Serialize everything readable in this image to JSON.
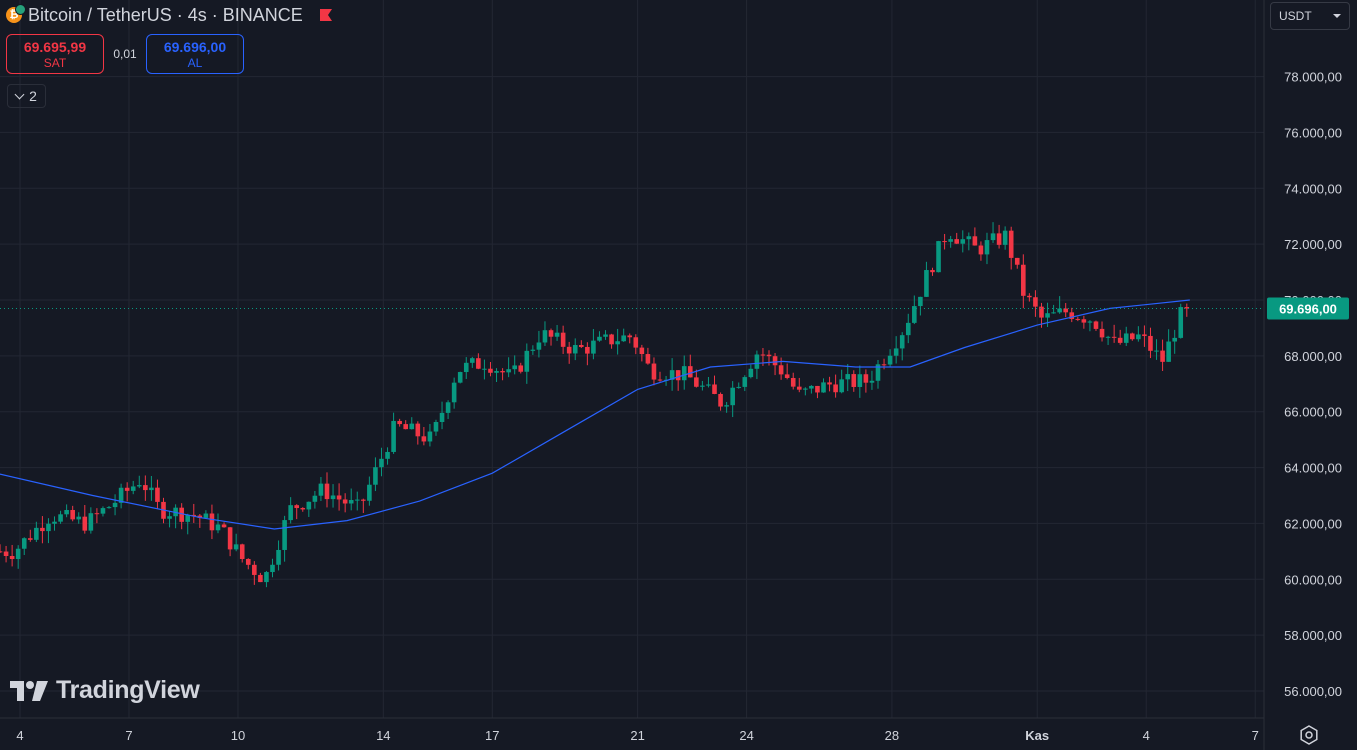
{
  "header": {
    "title": "Bitcoin / TetherUS · 4s · BINANCE",
    "coin_icon": "bitcoin-icon",
    "flag_icon": "flag-icon"
  },
  "trade": {
    "sell_price": "69.695,99",
    "sell_label": "SAT",
    "spread": "0,01",
    "buy_price": "69.696,00",
    "buy_label": "AL"
  },
  "indicators_toggle": {
    "count": "2"
  },
  "currency": {
    "value": "USDT"
  },
  "logo": {
    "text": "TradingView"
  },
  "colors": {
    "background": "#151924",
    "grid": "#232733",
    "up": "#089981",
    "down": "#f23645",
    "moving_average": "#2962ff",
    "text": "#d1d4dc"
  },
  "chart_data": {
    "type": "candlestick",
    "ylim": [
      55000,
      80000
    ],
    "y_ticks": [
      {
        "value": 78000,
        "label": "78.000,00"
      },
      {
        "value": 76000,
        "label": "76.000,00"
      },
      {
        "value": 74000,
        "label": "74.000,00"
      },
      {
        "value": 72000,
        "label": "72.000,00"
      },
      {
        "value": 70000,
        "label": "70.000,00"
      },
      {
        "value": 68000,
        "label": "68.000,00"
      },
      {
        "value": 66000,
        "label": "66.000,00"
      },
      {
        "value": 64000,
        "label": "64.000,00"
      },
      {
        "value": 62000,
        "label": "62.000,00"
      },
      {
        "value": 60000,
        "label": "60.000,00"
      },
      {
        "value": 58000,
        "label": "58.000,00"
      },
      {
        "value": 56000,
        "label": "56.000,00"
      }
    ],
    "x_ticks": [
      {
        "day": 4,
        "label": "4"
      },
      {
        "day": 7,
        "label": "7"
      },
      {
        "day": 10,
        "label": "10"
      },
      {
        "day": 14,
        "label": "14"
      },
      {
        "day": 17,
        "label": "17"
      },
      {
        "day": 21,
        "label": "21"
      },
      {
        "day": 24,
        "label": "24"
      },
      {
        "day": 28,
        "label": "28"
      },
      {
        "day": 32,
        "label": "Kas"
      },
      {
        "day": 35,
        "label": "4"
      },
      {
        "day": 38,
        "label": "7"
      }
    ],
    "last_price": {
      "value": 69696,
      "label": "69.696,00"
    },
    "anchors": [
      {
        "day": 4.0,
        "price": 61000
      },
      {
        "day": 5.0,
        "price": 62300
      },
      {
        "day": 6.0,
        "price": 62000
      },
      {
        "day": 6.7,
        "price": 62700
      },
      {
        "day": 7.5,
        "price": 63600
      },
      {
        "day": 8.0,
        "price": 62500
      },
      {
        "day": 9.0,
        "price": 62300
      },
      {
        "day": 9.7,
        "price": 61800
      },
      {
        "day": 10.3,
        "price": 60700
      },
      {
        "day": 10.9,
        "price": 60000
      },
      {
        "day": 11.6,
        "price": 62500
      },
      {
        "day": 12.5,
        "price": 63200
      },
      {
        "day": 13.5,
        "price": 62500
      },
      {
        "day": 14.5,
        "price": 65500
      },
      {
        "day": 15.5,
        "price": 65000
      },
      {
        "day": 16.2,
        "price": 67500
      },
      {
        "day": 17.0,
        "price": 67800
      },
      {
        "day": 17.7,
        "price": 67200
      },
      {
        "day": 18.5,
        "price": 68800
      },
      {
        "day": 19.5,
        "price": 68200
      },
      {
        "day": 20.5,
        "price": 68600
      },
      {
        "day": 21.0,
        "price": 68700
      },
      {
        "day": 21.5,
        "price": 67500
      },
      {
        "day": 22.5,
        "price": 67300
      },
      {
        "day": 23.5,
        "price": 66300
      },
      {
        "day": 24.5,
        "price": 68200
      },
      {
        "day": 25.2,
        "price": 67400
      },
      {
        "day": 25.6,
        "price": 66600
      },
      {
        "day": 26.5,
        "price": 67000
      },
      {
        "day": 27.5,
        "price": 67100
      },
      {
        "day": 28.5,
        "price": 69000
      },
      {
        "day": 29.0,
        "price": 70500
      },
      {
        "day": 29.7,
        "price": 72500
      },
      {
        "day": 30.5,
        "price": 71800
      },
      {
        "day": 31.3,
        "price": 72300
      },
      {
        "day": 31.8,
        "price": 70200
      },
      {
        "day": 32.3,
        "price": 69300
      },
      {
        "day": 33.0,
        "price": 69600
      },
      {
        "day": 33.7,
        "price": 69300
      },
      {
        "day": 34.3,
        "price": 68400
      },
      {
        "day": 35.0,
        "price": 68700
      },
      {
        "day": 35.6,
        "price": 67800
      },
      {
        "day": 36.2,
        "price": 69696
      }
    ],
    "moving_average": [
      {
        "day": 3.0,
        "price": 63900
      },
      {
        "day": 6.0,
        "price": 63000
      },
      {
        "day": 9.0,
        "price": 62200
      },
      {
        "day": 11.0,
        "price": 61800
      },
      {
        "day": 13.0,
        "price": 62100
      },
      {
        "day": 15.0,
        "price": 62800
      },
      {
        "day": 17.0,
        "price": 63800
      },
      {
        "day": 19.0,
        "price": 65300
      },
      {
        "day": 21.0,
        "price": 66800
      },
      {
        "day": 23.0,
        "price": 67600
      },
      {
        "day": 25.0,
        "price": 67800
      },
      {
        "day": 27.0,
        "price": 67600
      },
      {
        "day": 28.5,
        "price": 67600
      },
      {
        "day": 30.0,
        "price": 68300
      },
      {
        "day": 32.0,
        "price": 69100
      },
      {
        "day": 34.0,
        "price": 69700
      },
      {
        "day": 36.2,
        "price": 70000
      }
    ]
  }
}
